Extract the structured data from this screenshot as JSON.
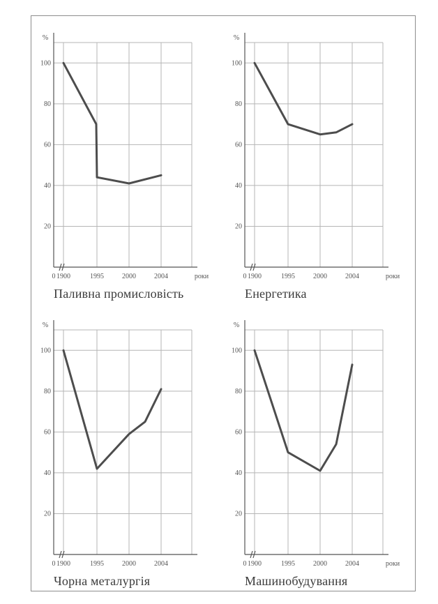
{
  "chart_data": [
    {
      "type": "line",
      "title": "Паливна промисловість",
      "ylabel": "%",
      "xlabel": "роки",
      "x_ticks": [
        "0",
        "1900",
        "1995",
        "2000",
        "2004"
      ],
      "y_ticks": [
        "20",
        "40",
        "60",
        "80",
        "100"
      ],
      "ylim": [
        0,
        110
      ],
      "grid": true,
      "series": [
        {
          "x": [
            "1900",
            "1993",
            "1995",
            "2000",
            "2004"
          ],
          "values": [
            100,
            70,
            44,
            41,
            45
          ]
        }
      ]
    },
    {
      "type": "line",
      "title": "Енергетика",
      "ylabel": "%",
      "xlabel": "роки",
      "x_ticks": [
        "0",
        "1900",
        "1995",
        "2000",
        "2004"
      ],
      "y_ticks": [
        "20",
        "40",
        "60",
        "80",
        "100"
      ],
      "ylim": [
        0,
        110
      ],
      "grid": true,
      "series": [
        {
          "x": [
            "1900",
            "1995",
            "2000",
            "2002",
            "2004"
          ],
          "values": [
            100,
            70,
            65,
            66,
            70
          ]
        }
      ]
    },
    {
      "type": "line",
      "title": "Чорна металургія",
      "ylabel": "%",
      "xlabel": "",
      "x_ticks": [
        "0",
        "1900",
        "1995",
        "2000",
        "2004"
      ],
      "y_ticks": [
        "20",
        "40",
        "60",
        "80",
        "100"
      ],
      "ylim": [
        0,
        110
      ],
      "grid": true,
      "series": [
        {
          "x": [
            "1900",
            "1995",
            "2000",
            "2002",
            "2004"
          ],
          "values": [
            100,
            42,
            59,
            65,
            81
          ]
        }
      ]
    },
    {
      "type": "line",
      "title": "Машинобудування",
      "ylabel": "%",
      "xlabel": "роки",
      "x_ticks": [
        "0",
        "1900",
        "1995",
        "2000",
        "2004"
      ],
      "y_ticks": [
        "20",
        "40",
        "60",
        "80",
        "100"
      ],
      "ylim": [
        0,
        110
      ],
      "grid": true,
      "series": [
        {
          "x": [
            "1900",
            "1995",
            "2000",
            "2002",
            "2004"
          ],
          "values": [
            100,
            50,
            41,
            54,
            93
          ]
        }
      ]
    }
  ]
}
